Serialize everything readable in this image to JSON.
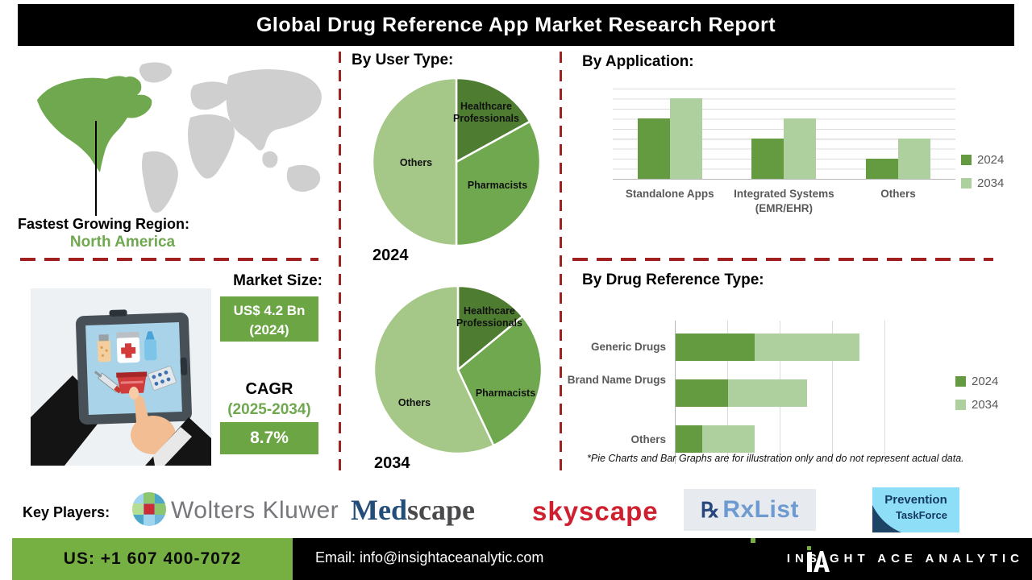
{
  "title": "Global Drug Reference App Market Research Report",
  "region": {
    "label": "Fastest Growing Region:",
    "value": "North America"
  },
  "market": {
    "heading": "Market Size:",
    "size_value": "US$ 4.2 Bn",
    "size_year": "(2024)",
    "cagr_label": "CAGR",
    "cagr_period": "(2025-2034)",
    "cagr_value": "8.7%"
  },
  "sections": {
    "user_type": "By User Type:",
    "application": "By Application:",
    "drug_reference": "By Drug Reference Type:"
  },
  "pie_years": [
    "2024",
    "2034"
  ],
  "footnote": "*Pie Charts and Bar Graphs are for illustration only and do not represent actual data.",
  "key_players": {
    "label": "Key Players:",
    "wolters_kluwer": "Wolters Kluwer",
    "medscape_med": "Med",
    "medscape_scape": "scape",
    "skyscape": "skyscape",
    "rxlist_rx": "℞",
    "rxlist": "RxList",
    "prevention_line1": "Prevention",
    "prevention_line2": "TaskForce"
  },
  "footer": {
    "phone": "US: +1 607 400-7072",
    "email": "Email: info@insightaceanalytic.com",
    "brand": "INSIGHT ACE ANALYTIC"
  },
  "colors": {
    "accent_green": "#6ca644",
    "bar_2024": "#649a40",
    "bar_2034": "#aecf9e",
    "pie_dark": "#4e7c31",
    "pie_mid": "#6fa84f",
    "pie_light": "#a5c787",
    "dashed_red": "#a12121",
    "footer_green": "#76b043",
    "gray_text": "#595959"
  },
  "chart_data": [
    {
      "type": "pie",
      "title": "By User Type: 2024",
      "labels": [
        "Healthcare Professionals",
        "Pharmacists",
        "Others"
      ],
      "values": [
        17,
        33,
        50
      ],
      "colors": [
        "#4e7c31",
        "#6fa84f",
        "#a5c787"
      ],
      "note": "illustrative percentages, clockwise from 12 o'clock"
    },
    {
      "type": "pie",
      "title": "By User Type: 2034",
      "labels": [
        "Healthcare Professionals",
        "Pharmacists",
        "Others"
      ],
      "values": [
        14,
        29,
        57
      ],
      "colors": [
        "#4e7c31",
        "#6fa84f",
        "#a5c787"
      ],
      "note": "illustrative percentages, clockwise from 12 o'clock"
    },
    {
      "type": "bar",
      "title": "By Application:",
      "categories": [
        "Standalone Apps",
        "Integrated Systems (EMR/EHR)",
        "Others"
      ],
      "series": [
        {
          "name": "2024",
          "values": [
            6,
            4,
            2
          ],
          "color": "#649a40"
        },
        {
          "name": "2034",
          "values": [
            8,
            6,
            4
          ],
          "color": "#aecf9e"
        }
      ],
      "ylim": [
        0,
        9
      ],
      "grid": true,
      "legend_position": "right",
      "note": "illustrative units, no value axis labels shown"
    },
    {
      "type": "bar",
      "orientation": "horizontal",
      "stacked": true,
      "title": "By Drug Reference Type:",
      "categories": [
        "Generic Drugs",
        "Brand Name Drugs",
        "Others"
      ],
      "series": [
        {
          "name": "2024",
          "values": [
            1.5,
            1.0,
            0.5
          ],
          "color": "#649a40"
        },
        {
          "name": "2034",
          "values": [
            2.0,
            1.5,
            1.0
          ],
          "color": "#aecf9e"
        }
      ],
      "xlim": [
        0,
        4.5
      ],
      "grid": true,
      "legend_position": "right",
      "note": "illustrative units, no value axis labels shown"
    }
  ]
}
